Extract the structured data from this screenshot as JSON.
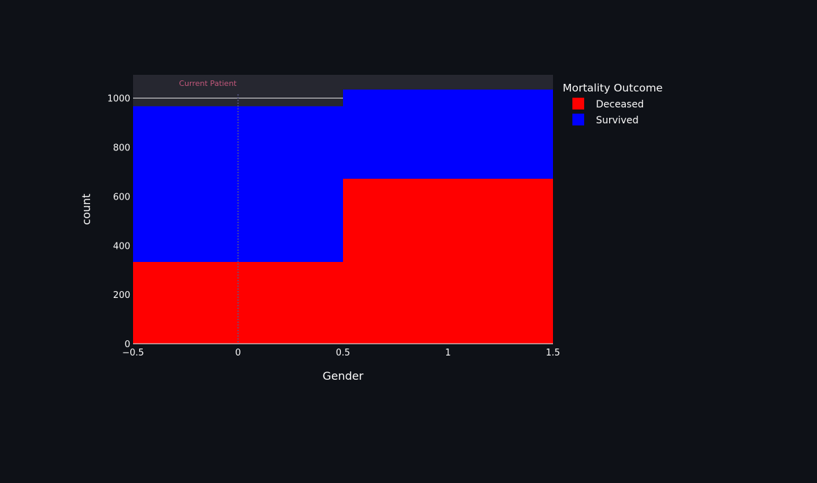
{
  "chart_data": {
    "type": "bar",
    "barmode": "stack",
    "bins": [
      {
        "x0": -0.5,
        "x1": 0.5
      },
      {
        "x0": 0.5,
        "x1": 1.5
      }
    ],
    "series": [
      {
        "name": "Deceased",
        "values": [
          333,
          672
        ],
        "color": "#ff0000"
      },
      {
        "name": "Survived",
        "values": [
          634,
          363
        ],
        "color": "#0000ff"
      }
    ],
    "xlabel": "Gender",
    "ylabel": "count",
    "xlim": [
      -0.5,
      1.5
    ],
    "ylim": [
      0,
      1095
    ],
    "xticks": [
      -0.5,
      0,
      0.5,
      1,
      1.5
    ],
    "xtick_labels": [
      "−0.5",
      "0",
      "0.5",
      "1",
      "1.5"
    ],
    "yticks": [
      0,
      200,
      400,
      600,
      800,
      1000
    ],
    "ytick_labels": [
      "0",
      "200",
      "400",
      "600",
      "800",
      "1000"
    ],
    "grid": true,
    "legend": {
      "title": "Mortality Outcome",
      "placement": "top-right, outside plot"
    },
    "annotations": [
      {
        "text": "Current Patient",
        "x": 0,
        "type": "vertical-dashed-line"
      }
    ],
    "reference_line": {
      "y": 1000
    }
  },
  "colors": {
    "background": "#0e1117",
    "plot_background": "#262730",
    "text": "#fafafa",
    "annotation_text": "#c0577a"
  }
}
